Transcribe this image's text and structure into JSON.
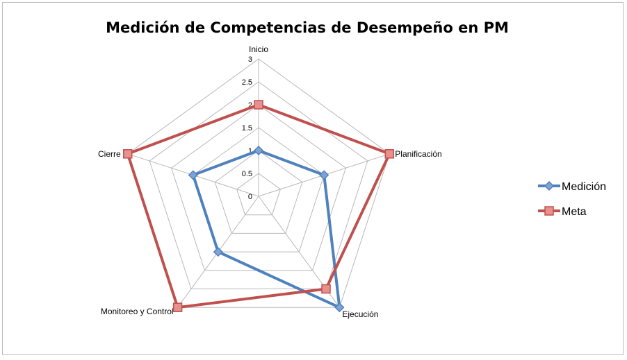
{
  "chart_data": {
    "type": "radar",
    "title": "Medición de Competencias de Desempeño en PM",
    "categories": [
      "Inicio",
      "Planificación",
      "Ejecución",
      "Monitoreo y Control",
      "Cierre"
    ],
    "ticks": [
      "0",
      "0.5",
      "1",
      "1.5",
      "2",
      "2.5",
      "3"
    ],
    "rmin": 0,
    "rmax": 3,
    "grid": true,
    "legend_position": "right",
    "series": [
      {
        "name": "Medición",
        "values": [
          1,
          1.5,
          3,
          1.5,
          1.5
        ],
        "color": "#4F81BD",
        "marker": "diamond"
      },
      {
        "name": "Meta",
        "values": [
          2,
          3,
          2.5,
          3,
          3
        ],
        "color": "#C0504D",
        "marker": "square"
      }
    ]
  }
}
